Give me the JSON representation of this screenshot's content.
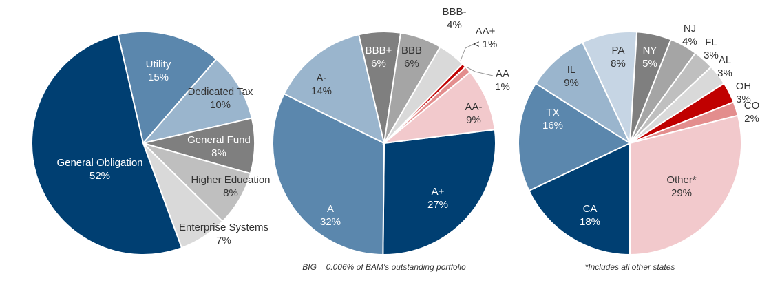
{
  "chart_data": [
    {
      "type": "pie",
      "title": "",
      "labels": [
        "Utility",
        "Dedicated Tax",
        "General Fund",
        "Higher Education",
        "Enterprise Systems",
        "General Obligation"
      ],
      "values": [
        15,
        10,
        8,
        8,
        7,
        52
      ],
      "value_labels": [
        "15%",
        "10%",
        "8%",
        "8%",
        "7%",
        "52%"
      ],
      "colors": [
        "#5b87ad",
        "#9ab5cd",
        "#7f7f7f",
        "#bfbfbf",
        "#d9d9d9",
        "#003f72"
      ]
    },
    {
      "type": "pie",
      "title": "",
      "labels": [
        "A+",
        "A",
        "A-",
        "BBB+",
        "BBB",
        "BBB-",
        "AA+",
        "AA",
        "AA-"
      ],
      "values": [
        27,
        32,
        14,
        6,
        6,
        4,
        0.6,
        1,
        9
      ],
      "value_labels": [
        "27%",
        "32%",
        "14%",
        "6%",
        "6%",
        "4%",
        "< 1%",
        "1%",
        "9%"
      ],
      "colors": [
        "#003f72",
        "#5b87ad",
        "#9ab5cd",
        "#7f7f7f",
        "#a5a5a5",
        "#d9d9d9",
        "#c00000",
        "#e38d8d",
        "#f2c9cc"
      ],
      "footnote": "BIG = 0.006% of BAM's outstanding portfolio"
    },
    {
      "type": "pie",
      "title": "",
      "labels": [
        "CA",
        "TX",
        "IL",
        "PA",
        "NY",
        "NJ",
        "FL",
        "AL",
        "OH",
        "CO",
        "Other*"
      ],
      "values": [
        18,
        16,
        9,
        8,
        5,
        4,
        3,
        3,
        3,
        2,
        29
      ],
      "value_labels": [
        "18%",
        "16%",
        "9%",
        "8%",
        "5%",
        "4%",
        "3%",
        "3%",
        "3%",
        "2%",
        "29%"
      ],
      "colors": [
        "#003f72",
        "#5b87ad",
        "#9ab5cd",
        "#c6d5e4",
        "#7f7f7f",
        "#a5a5a5",
        "#bfbfbf",
        "#d9d9d9",
        "#c00000",
        "#e38d8d",
        "#f2c9cc"
      ],
      "footnote": "*Includes all other states"
    }
  ]
}
